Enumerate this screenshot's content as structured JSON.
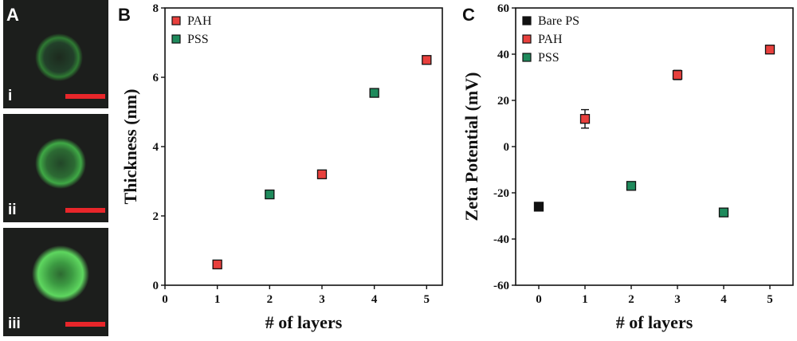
{
  "panel_a": {
    "letter": "A",
    "images": [
      {
        "label": "i",
        "ring_color": "#2f7a33"
      },
      {
        "label": "ii",
        "ring_color": "#3fa845"
      },
      {
        "label": "iii",
        "ring_color": "#5ed65f"
      }
    ],
    "scalebar_color": "#e8262a"
  },
  "chart_data": [
    {
      "panel": "B",
      "type": "scatter",
      "xlabel": "# of layers",
      "ylabel": "Thickness (nm)",
      "xlim": [
        0,
        5.3
      ],
      "ylim": [
        0,
        8
      ],
      "xticks": [
        0,
        1,
        2,
        3,
        4,
        5
      ],
      "yticks": [
        0,
        2,
        4,
        6,
        8
      ],
      "legend_position": "top-left",
      "series": [
        {
          "name": "PAH",
          "color": "#e8403d",
          "points": [
            {
              "x": 1,
              "y": 0.6
            },
            {
              "x": 3,
              "y": 3.2
            },
            {
              "x": 5,
              "y": 6.5
            }
          ]
        },
        {
          "name": "PSS",
          "color": "#1f8a5c",
          "points": [
            {
              "x": 2,
              "y": 2.62
            },
            {
              "x": 4,
              "y": 5.55
            }
          ]
        }
      ]
    },
    {
      "panel": "C",
      "type": "scatter",
      "xlabel": "# of layers",
      "ylabel": "Zeta Potential (mV)",
      "xlim": [
        -0.5,
        5.5
      ],
      "ylim": [
        -60,
        60
      ],
      "xticks": [
        0,
        1,
        2,
        3,
        4,
        5
      ],
      "yticks": [
        -60,
        -40,
        -20,
        0,
        20,
        40,
        60
      ],
      "legend_position": "top-left",
      "series": [
        {
          "name": "Bare PS",
          "color": "#111111",
          "points": [
            {
              "x": 0,
              "y": -26
            }
          ]
        },
        {
          "name": "PAH",
          "color": "#e8403d",
          "points": [
            {
              "x": 1,
              "y": 12,
              "err": 4
            },
            {
              "x": 3,
              "y": 31,
              "err": 2
            },
            {
              "x": 5,
              "y": 42
            }
          ]
        },
        {
          "name": "PSS",
          "color": "#1f8a5c",
          "points": [
            {
              "x": 2,
              "y": -17
            },
            {
              "x": 4,
              "y": -28.5
            }
          ]
        }
      ]
    }
  ]
}
